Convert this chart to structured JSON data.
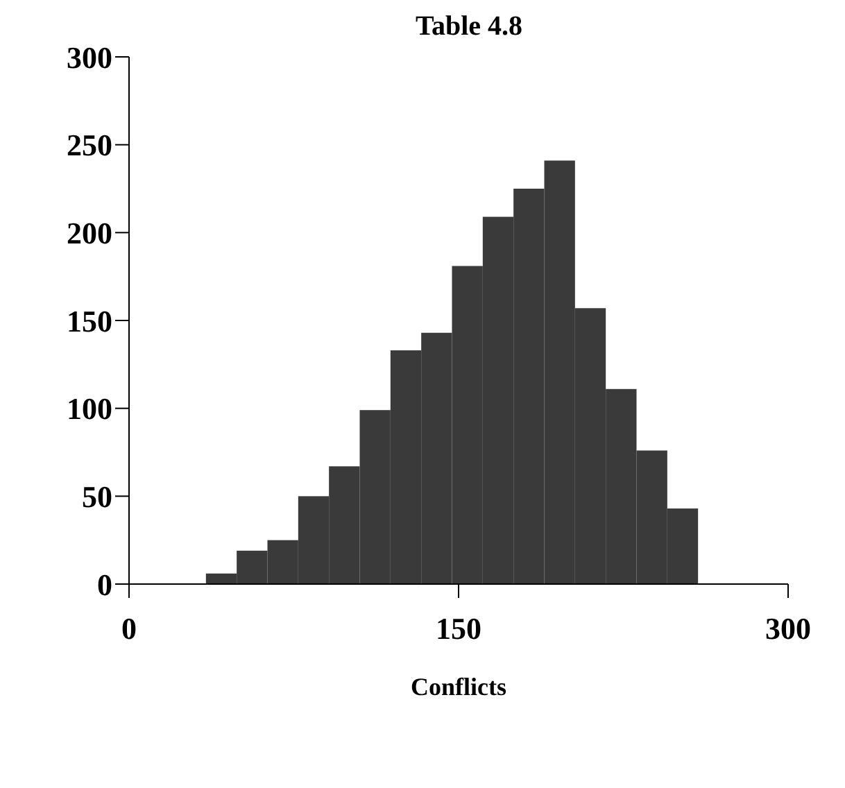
{
  "chart_data": {
    "type": "histogram",
    "title": "Table 4.8",
    "xlabel": "Conflicts",
    "bins": [
      35,
      49,
      63,
      77,
      91,
      105,
      119,
      133,
      147,
      161,
      175,
      189,
      203,
      217,
      231,
      245,
      259
    ],
    "values": [
      6,
      19,
      25,
      50,
      67,
      99,
      133,
      143,
      181,
      209,
      225,
      241,
      157,
      111,
      76,
      43
    ],
    "color": "#3a3a3a",
    "xlim": [
      0,
      300
    ],
    "xticks": [
      0,
      150,
      300
    ],
    "ylim": [
      0,
      300
    ],
    "yticks": [
      0,
      50,
      100,
      150,
      200,
      250,
      300
    ]
  }
}
